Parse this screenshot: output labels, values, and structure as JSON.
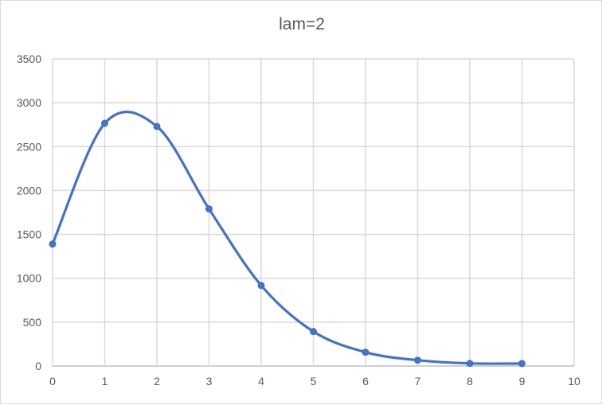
{
  "chart_data": {
    "type": "scatter",
    "title": "lam=2",
    "xlabel": "",
    "ylabel": "",
    "xlim": [
      0,
      10
    ],
    "ylim": [
      0,
      3500
    ],
    "xticks": [
      0,
      1,
      2,
      3,
      4,
      5,
      6,
      7,
      8,
      9,
      10
    ],
    "yticks": [
      0,
      500,
      1000,
      1500,
      2000,
      2500,
      3000,
      3500
    ],
    "grid": true,
    "smoothed_line": true,
    "color": "#4472C4",
    "series": [
      {
        "x": [
          0,
          1,
          2,
          3,
          4,
          5,
          6,
          7,
          8,
          9
        ],
        "y": [
          1390,
          2765,
          2730,
          1790,
          918,
          393,
          157,
          66,
          30,
          28
        ]
      }
    ]
  }
}
